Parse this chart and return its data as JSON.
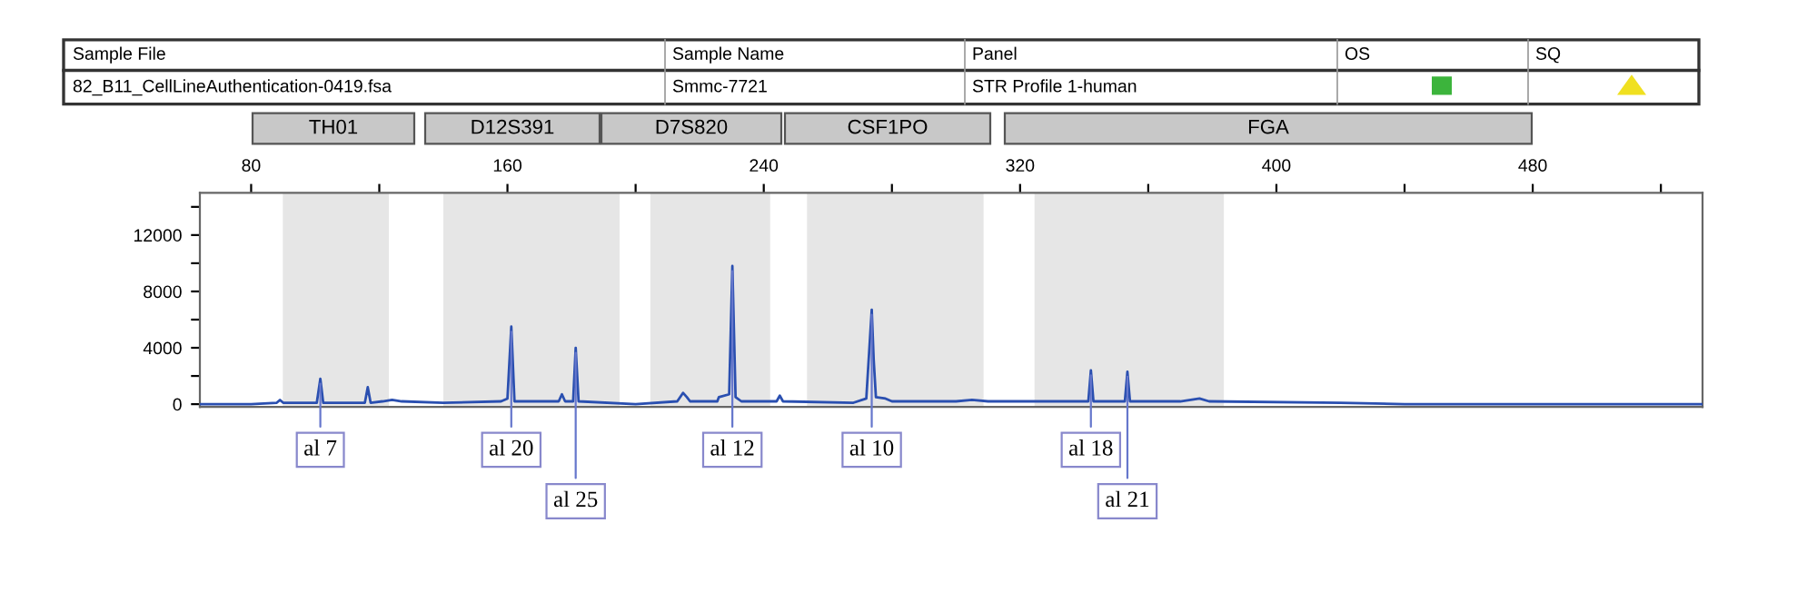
{
  "chart_data": {
    "type": "line",
    "annotations": [
      "Sample File",
      "Sample Name",
      "Panel",
      "OS",
      "SQ",
      "82_B11_CellLineAuthentication-0419.fsa",
      "Smmc-7721",
      "STR Profile 1-human",
      "TH01",
      "D12S391",
      "D7S820",
      "CSF1PO",
      "FGA",
      {
        "text": "al 7",
        "x": 101.6,
        "y": 1800
      },
      {
        "text": "al 20",
        "x": 161.2,
        "y": 5500
      },
      {
        "text": "al 25",
        "x": 181.3,
        "y": 4000
      },
      {
        "text": "al 12",
        "x": 230.2,
        "y": 9800
      },
      {
        "text": "al 10",
        "x": 273.7,
        "y": 6700
      },
      {
        "text": "al 18",
        "x": 342.1,
        "y": 2400
      },
      {
        "text": "al 21",
        "x": 353.5,
        "y": 2300
      }
    ],
    "series": [
      {
        "color": "#2a4fb0",
        "x": [
          64,
          80,
          88,
          89,
          90,
          100.5,
          101.6,
          102.5,
          115.5,
          116.4,
          117.3,
          121,
          124,
          127,
          140,
          158,
          160,
          161.2,
          162.2,
          176,
          177,
          178,
          180.5,
          181.3,
          182.2,
          200,
          213,
          214.8,
          216,
          217,
          225.5,
          226,
          229.2,
          230.2,
          231.2,
          233,
          244,
          245,
          246,
          268,
          272,
          273.7,
          274.3,
          275,
          278,
          280,
          300,
          305,
          310,
          313,
          341.3,
          342.1,
          342.9,
          352.7,
          353.5,
          354.3,
          370,
          376,
          379,
          420,
          440,
          533
        ],
        "values": [
          0,
          0,
          100,
          300,
          100,
          100,
          1800,
          100,
          100,
          1200,
          100,
          200,
          300,
          200,
          100,
          200,
          400,
          5500,
          200,
          200,
          700,
          200,
          200,
          4000,
          200,
          0,
          200,
          800,
          500,
          200,
          200,
          500,
          700,
          9800,
          500,
          200,
          200,
          600,
          200,
          100,
          400,
          6700,
          3200,
          500,
          400,
          200,
          200,
          300,
          200,
          200,
          200,
          2400,
          200,
          200,
          2300,
          200,
          200,
          400,
          200,
          100,
          0,
          0
        ]
      }
    ],
    "xlim": [
      64,
      533
    ],
    "xticks": [
      80,
      {
        "value": 120,
        "label": null
      },
      160,
      {
        "value": 200,
        "label": null
      },
      240,
      {
        "value": 280,
        "label": null
      },
      320,
      {
        "value": 360,
        "label": null
      },
      400,
      {
        "value": 440,
        "label": null
      },
      480,
      {
        "value": 520,
        "label": null
      }
    ],
    "ylim": [
      -200,
      15000
    ],
    "yticks": [
      0,
      {
        "value": 2000,
        "label": null
      },
      4000,
      {
        "value": 6000,
        "label": null
      },
      8000,
      {
        "value": 10000,
        "label": null
      },
      12000,
      {
        "value": 14000,
        "label": null
      }
    ],
    "bands": [
      {
        "axis": "x",
        "from": 89.9,
        "to": 123,
        "color": "#e6e6e6"
      },
      {
        "axis": "x",
        "from": 140,
        "to": 195,
        "color": "#e6e6e6"
      },
      {
        "axis": "x",
        "from": 204.6,
        "to": 242,
        "color": "#e6e6e6"
      },
      {
        "axis": "x",
        "from": 253.5,
        "to": 308.6,
        "color": "#e6e6e6"
      },
      {
        "axis": "x",
        "from": 324.5,
        "to": 383.6,
        "color": "#e6e6e6"
      }
    ],
    "grid": false,
    "legend": false
  }
}
